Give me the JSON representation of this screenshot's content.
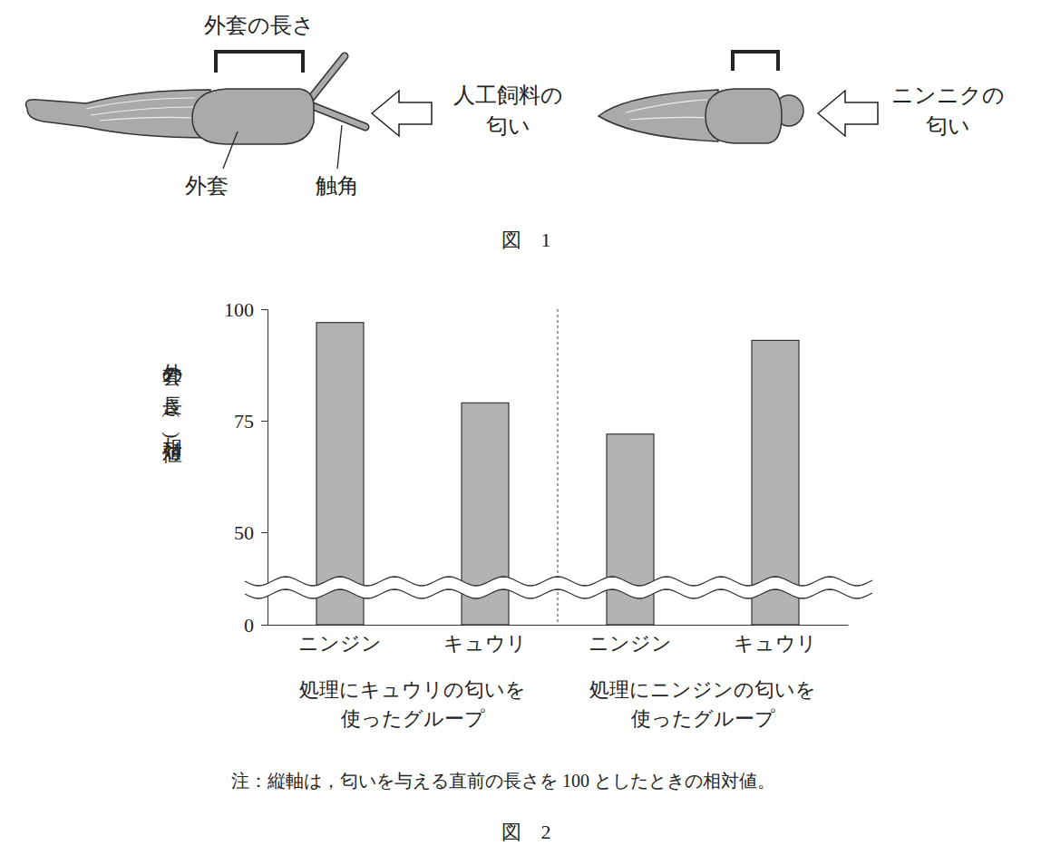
{
  "diagram": {
    "bracket_label": "外套の長さ",
    "labels": [
      "外套",
      "触角"
    ],
    "stimuli": [
      "人工飼料の匂い",
      "ニンニクの匂い"
    ],
    "caption": "図　1"
  },
  "chart_data": {
    "type": "bar",
    "y_label": "外套の長さ(相対値)",
    "categories": [
      "ニンジン",
      "キュウリ",
      "ニンジン",
      "キュウリ"
    ],
    "values": [
      97,
      79,
      72,
      93
    ],
    "group_labels": [
      "処理にキュウリの匂いを使ったグループ",
      "処理にニンジンの匂いを使ったグループ"
    ],
    "color": "#b3b3b3",
    "ylim": [
      0,
      100
    ],
    "yticks": [
      0,
      50,
      75,
      100
    ],
    "grid": false,
    "note": "注：縦軸は，匂いを与える直前の長さを 100 としたときの相対値。",
    "caption": "図　2"
  }
}
